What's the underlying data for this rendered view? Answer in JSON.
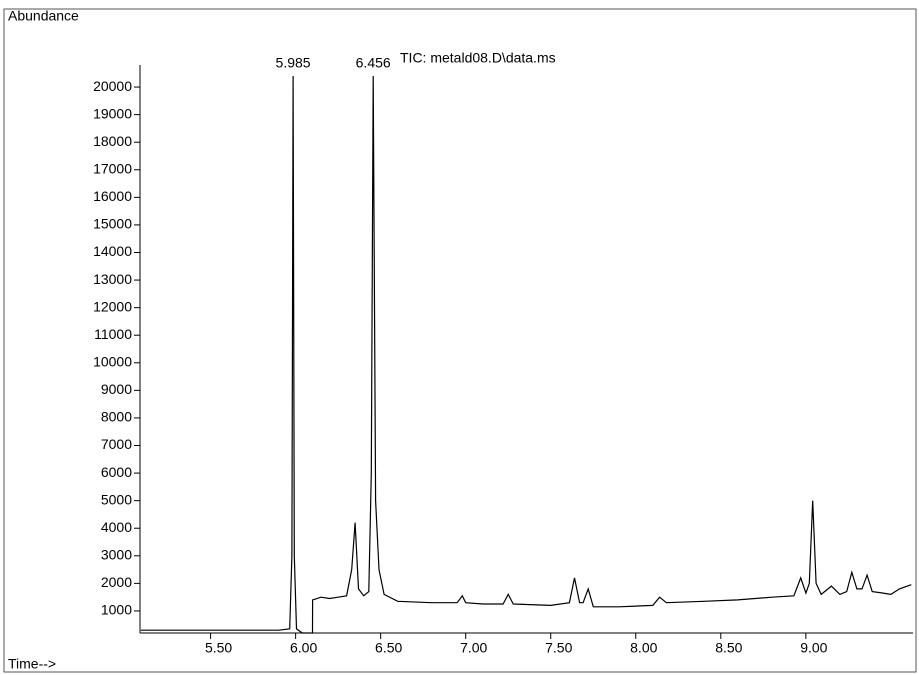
{
  "chart_data": {
    "type": "line",
    "title": "TIC: metald08.D\\data.ms",
    "y_label": "Abundance",
    "x_label": "Time-->",
    "color": "#000000",
    "x": [
      5.09,
      5.5,
      5.9,
      5.965,
      5.978,
      5.985,
      5.992,
      6.005,
      6.04,
      6.099,
      6.1,
      6.15,
      6.2,
      6.25,
      6.3,
      6.33,
      6.35,
      6.37,
      6.4,
      6.43,
      6.445,
      6.456,
      6.47,
      6.49,
      6.52,
      6.6,
      6.8,
      6.95,
      6.98,
      7.0,
      7.1,
      7.22,
      7.25,
      7.28,
      7.5,
      7.61,
      7.64,
      7.67,
      7.69,
      7.72,
      7.75,
      7.9,
      8.1,
      8.14,
      8.18,
      8.4,
      8.6,
      8.8,
      8.93,
      8.97,
      9.0,
      9.02,
      9.04,
      9.06,
      9.09,
      9.15,
      9.2,
      9.24,
      9.27,
      9.3,
      9.33,
      9.36,
      9.39,
      9.45,
      9.5,
      9.55,
      9.62
    ],
    "values": [
      300,
      300,
      300,
      350,
      3000,
      20400,
      3000,
      350,
      200,
      200,
      1400,
      1500,
      1450,
      1500,
      1550,
      2500,
      4200,
      1800,
      1550,
      1700,
      6000,
      20400,
      5000,
      2500,
      1600,
      1350,
      1300,
      1300,
      1550,
      1300,
      1250,
      1250,
      1600,
      1250,
      1200,
      1300,
      2200,
      1300,
      1300,
      1800,
      1150,
      1150,
      1200,
      1500,
      1300,
      1350,
      1400,
      1500,
      1550,
      2200,
      1650,
      2000,
      5000,
      2000,
      1600,
      1900,
      1600,
      1700,
      2400,
      1800,
      1800,
      2300,
      1700,
      1650,
      1600,
      1800,
      1950
    ],
    "xlim": [
      5.085,
      9.63
    ],
    "ylim": [
      200,
      20800
    ],
    "xticks": [
      {
        "value": 5.5,
        "label": "5.50"
      },
      {
        "value": 6.0,
        "label": "6.00"
      },
      {
        "value": 6.5,
        "label": "6.50"
      },
      {
        "value": 7.0,
        "label": "7.00"
      },
      {
        "value": 7.5,
        "label": "7.50"
      },
      {
        "value": 8.0,
        "label": "8.00"
      },
      {
        "value": 8.5,
        "label": "8.50"
      },
      {
        "value": 9.0,
        "label": "9.00"
      }
    ],
    "yticks": [
      1000,
      2000,
      3000,
      4000,
      5000,
      6000,
      7000,
      8000,
      9000,
      10000,
      11000,
      12000,
      13000,
      14000,
      15000,
      16000,
      17000,
      18000,
      19000,
      20000
    ],
    "annotations": [
      {
        "text": "5.985",
        "x": 5.985,
        "y": 20400
      },
      {
        "text": "6.456",
        "x": 6.456,
        "y": 20400
      }
    ]
  }
}
